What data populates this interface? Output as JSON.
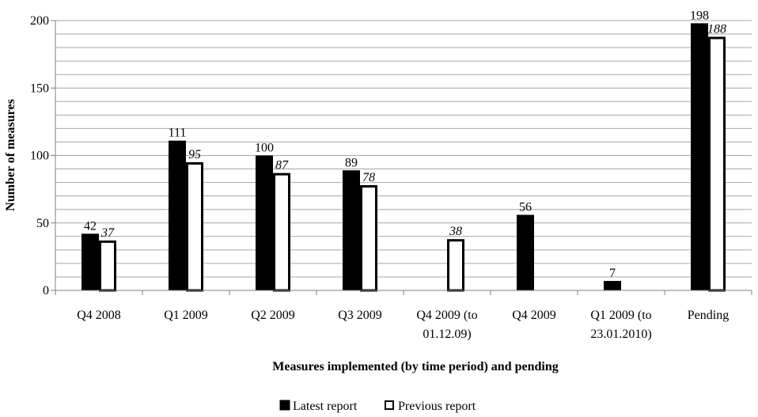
{
  "chart_data": {
    "type": "bar",
    "title": "",
    "xlabel": "Measures implemented (by time period) and pending",
    "ylabel": "Number of measures",
    "ylim": [
      0,
      200
    ],
    "yticks": [
      "0",
      "50",
      "100",
      "150",
      "200"
    ],
    "grid": true,
    "legend_position": "bottom",
    "categories": [
      [
        "Q4 2008"
      ],
      [
        "Q1 2009"
      ],
      [
        "Q2 2009"
      ],
      [
        "Q3 2009"
      ],
      [
        "Q4 2009 (to",
        "01.12.09)"
      ],
      [
        "Q4 2009"
      ],
      [
        "Q1 2009 (to",
        "23.01.2010)"
      ],
      [
        "Pending"
      ]
    ],
    "series": [
      {
        "name": "Latest report",
        "color": "#000000",
        "values": [
          42,
          111,
          100,
          89,
          null,
          56,
          7,
          198
        ]
      },
      {
        "name": "Previous report",
        "color": "#ffffff",
        "values": [
          37,
          95,
          87,
          78,
          38,
          null,
          null,
          188
        ]
      }
    ]
  }
}
